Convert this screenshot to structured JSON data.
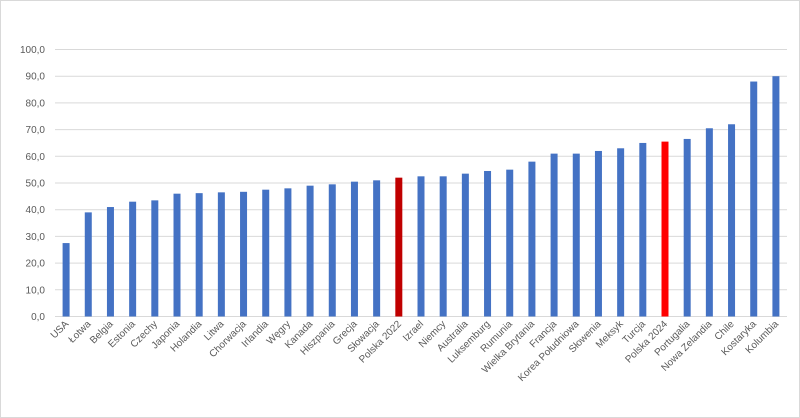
{
  "chart_data": {
    "type": "bar",
    "title": "",
    "xlabel": "",
    "ylabel": "",
    "ylim": [
      0,
      100
    ],
    "ytick_step": 10,
    "ytick_labels": [
      "0,0",
      "10,0",
      "20,0",
      "30,0",
      "40,0",
      "50,0",
      "60,0",
      "70,0",
      "80,0",
      "90,0",
      "100,0"
    ],
    "grid": true,
    "legend": "none",
    "colors": {
      "default": "#4472c4",
      "Polska 2022": "#c00000",
      "Polska 2024": "#ff0000",
      "grid": "#d9d9d9",
      "text": "#595959"
    },
    "categories": [
      "USA",
      "Łotwa",
      "Belgia",
      "Estonia",
      "Czechy",
      "Japonia",
      "Holandia",
      "Litwa",
      "Chorwacja",
      "Irlandia",
      "Węgry",
      "Kanada",
      "Hiszpania",
      "Grecja",
      "Słowacja",
      "Polska 2022",
      "Izrael",
      "Niemcy",
      "Australia",
      "Luksemburg",
      "Rumunia",
      "Wielka Brytania",
      "Francja",
      "Korea Południowa",
      "Słowenia",
      "Meksyk",
      "Turcja",
      "Polska 2024",
      "Portugalia",
      "Nowa Zelandia",
      "Chile",
      "Kostaryka",
      "Kolumbia"
    ],
    "values": [
      27.5,
      39,
      41,
      43,
      43.5,
      46,
      46.2,
      46.5,
      46.7,
      47.5,
      48,
      49,
      49.5,
      50.5,
      51,
      52,
      52.5,
      52.5,
      53.5,
      54.5,
      55,
      58,
      61,
      61,
      62,
      63,
      65,
      65.5,
      66.5,
      70.5,
      72,
      88,
      90
    ]
  }
}
